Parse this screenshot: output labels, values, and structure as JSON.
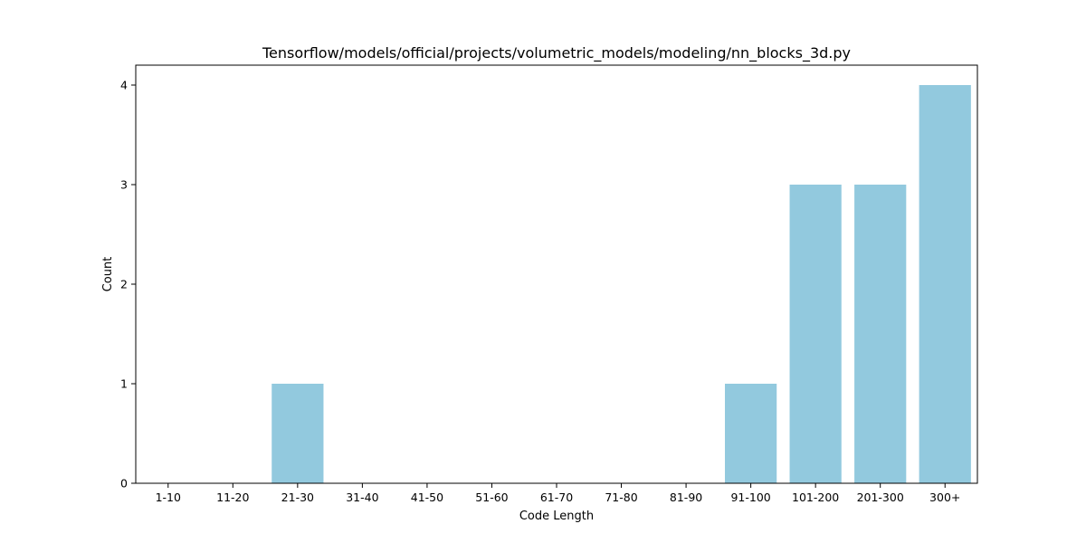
{
  "chart_data": {
    "type": "bar",
    "title": "Tensorflow/models/official/projects/volumetric_models/modeling/nn_blocks_3d.py",
    "xlabel": "Code Length",
    "ylabel": "Count",
    "categories": [
      "1-10",
      "11-20",
      "21-30",
      "31-40",
      "41-50",
      "51-60",
      "61-70",
      "71-80",
      "81-90",
      "91-100",
      "101-200",
      "201-300",
      "300+"
    ],
    "values": [
      0,
      0,
      1,
      0,
      0,
      0,
      0,
      0,
      0,
      1,
      3,
      3,
      4
    ],
    "ylim": [
      0,
      4.2
    ],
    "yticks": [
      0,
      1,
      2,
      3,
      4
    ],
    "grid": false,
    "legend": "none",
    "bar_color": "#92c9de"
  }
}
